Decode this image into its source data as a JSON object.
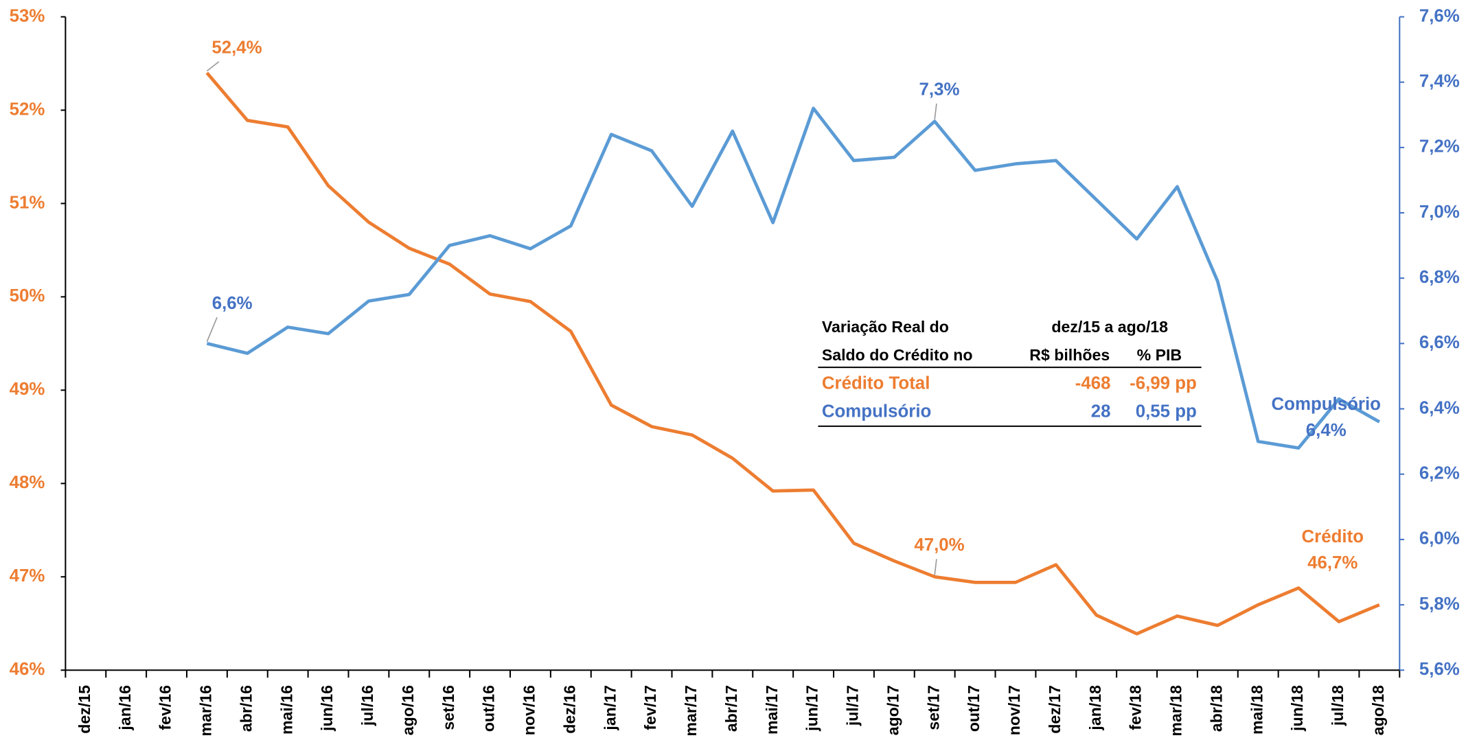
{
  "chart_data": {
    "type": "line",
    "categories": [
      "dez/15",
      "jan/16",
      "fev/16",
      "mar/16",
      "abr/16",
      "mai/16",
      "jun/16",
      "jul/16",
      "ago/16",
      "set/16",
      "out/16",
      "nov/16",
      "dez/16",
      "jan/17",
      "fev/17",
      "mar/17",
      "abr/17",
      "mai/17",
      "jun/17",
      "jul/17",
      "ago/17",
      "set/17",
      "out/17",
      "nov/17",
      "dez/17",
      "jan/18",
      "fev/18",
      "mar/18",
      "abr/18",
      "mai/18",
      "jun/18",
      "jul/18",
      "ago/18"
    ],
    "series": [
      {
        "name": "Crédito",
        "color": "#ED7D31",
        "axis": "y",
        "values": [
          null,
          null,
          null,
          52.4,
          51.89,
          51.82,
          51.19,
          50.8,
          50.52,
          50.35,
          50.03,
          49.95,
          49.63,
          48.84,
          48.61,
          48.52,
          48.27,
          47.92,
          47.93,
          47.36,
          47.17,
          47.0,
          46.94,
          46.94,
          47.13,
          46.59,
          46.39,
          46.58,
          46.48,
          46.7,
          46.88,
          46.52,
          46.7
        ],
        "value_labels": [
          null,
          null,
          null,
          "52,4%",
          null,
          null,
          null,
          null,
          null,
          null,
          null,
          null,
          null,
          null,
          null,
          null,
          null,
          null,
          null,
          null,
          null,
          "47,0%",
          null,
          null,
          null,
          null,
          null,
          null,
          null,
          null,
          null,
          null,
          "46,7%"
        ]
      },
      {
        "name": "Compulsório",
        "color": "#5B9BD5",
        "axis": "y2",
        "values": [
          null,
          null,
          null,
          6.6,
          6.57,
          6.65,
          6.63,
          6.73,
          6.75,
          6.9,
          6.93,
          6.89,
          6.96,
          7.24,
          7.19,
          7.02,
          7.25,
          6.97,
          7.32,
          7.16,
          7.17,
          7.28,
          7.13,
          7.15,
          7.16,
          7.04,
          6.92,
          7.08,
          6.79,
          6.3,
          6.28,
          6.43,
          6.36
        ],
        "value_labels": [
          null,
          null,
          null,
          "6,6%",
          null,
          null,
          null,
          null,
          null,
          null,
          null,
          null,
          null,
          null,
          null,
          null,
          null,
          null,
          null,
          null,
          null,
          "7,3%",
          null,
          null,
          null,
          null,
          null,
          null,
          null,
          null,
          null,
          null,
          "6,4%"
        ]
      }
    ],
    "ylim": [
      46,
      53
    ],
    "yticks": [
      {
        "value": 46,
        "label": "46%"
      },
      {
        "value": 47,
        "label": "47%"
      },
      {
        "value": 48,
        "label": "48%"
      },
      {
        "value": 49,
        "label": "49%"
      },
      {
        "value": 50,
        "label": "50%"
      },
      {
        "value": 51,
        "label": "51%"
      },
      {
        "value": 52,
        "label": "52%"
      },
      {
        "value": 53,
        "label": "53%"
      }
    ],
    "y2lim": [
      5.6,
      7.6
    ],
    "y2ticks": [
      {
        "value": 5.6,
        "label": "5,6%"
      },
      {
        "value": 5.8,
        "label": "5,8%"
      },
      {
        "value": 6.0,
        "label": "6,0%"
      },
      {
        "value": 6.2,
        "label": "6,2%"
      },
      {
        "value": 6.4,
        "label": "6,4%"
      },
      {
        "value": 6.6,
        "label": "6,6%"
      },
      {
        "value": 6.8,
        "label": "6,8%"
      },
      {
        "value": 7.0,
        "label": "7,0%"
      },
      {
        "value": 7.2,
        "label": "7,2%"
      },
      {
        "value": 7.4,
        "label": "7,4%"
      },
      {
        "value": 7.6,
        "label": "7,6%"
      }
    ],
    "grid": false,
    "table": {
      "rows": [
        [
          "Variação Real do",
          "dez/15 a ago/18"
        ],
        [
          "Saldo do Crédito no",
          "R$ bilhões",
          "% PIB"
        ],
        [
          "Crédito Total",
          "-468",
          "-6,99 pp"
        ],
        [
          "Compulsório",
          "28",
          "0,55 pp"
        ]
      ]
    }
  }
}
